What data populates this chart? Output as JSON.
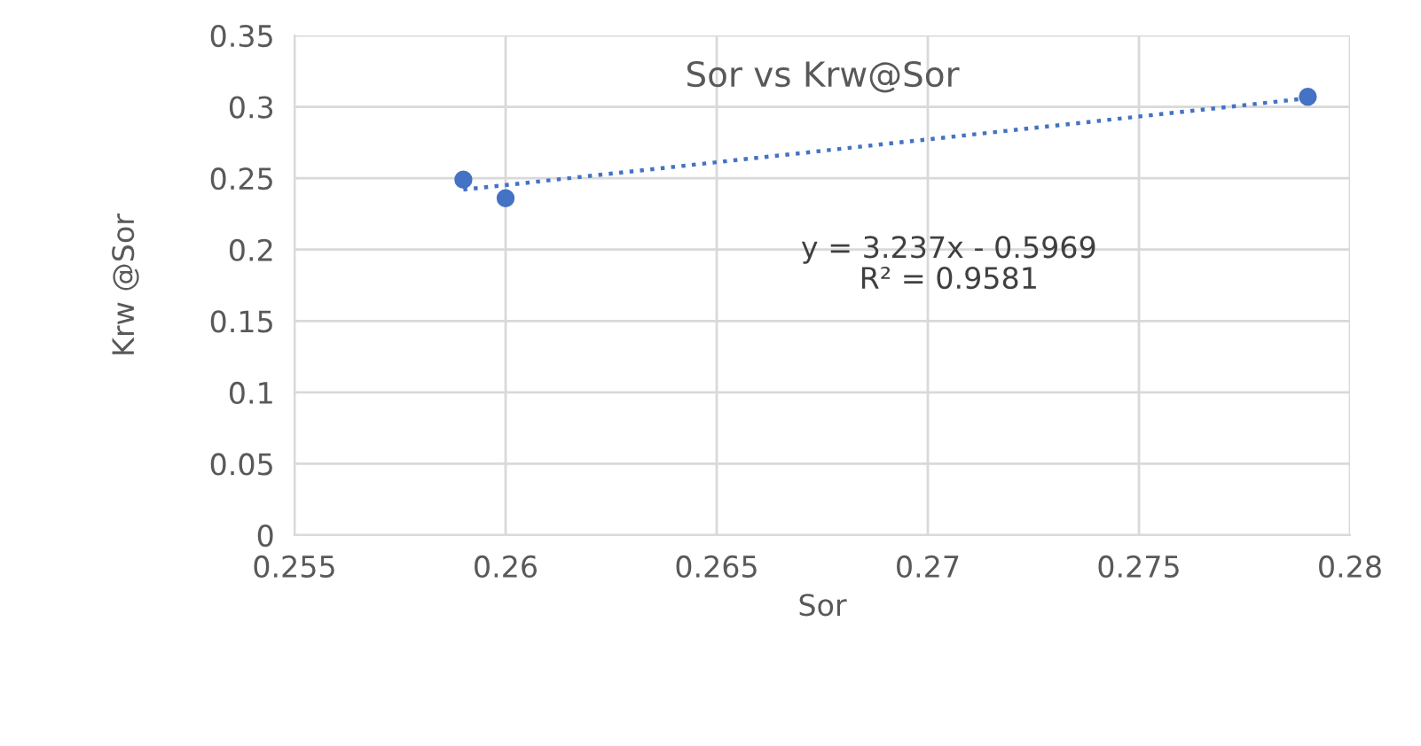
{
  "chart_data": {
    "type": "scatter",
    "title": "Sor vs Krw@Sor",
    "xlabel": "Sor",
    "ylabel": "Krw @Sor",
    "series": [
      {
        "color": "#4472c4",
        "x": [
          0.259,
          0.26,
          0.279
        ],
        "values": [
          0.249,
          0.236,
          0.307
        ],
        "marker": "circle"
      },
      {
        "type": "line",
        "color": "#4472c4",
        "x": [
          0.259,
          0.279
        ],
        "values": [
          0.242,
          0.306
        ],
        "line_style": "dotted",
        "marker": "none"
      }
    ],
    "annotations": [
      "y = 3.237x - 0.5969\nR² = 0.9581"
    ],
    "xlim": [
      0.255,
      0.28
    ],
    "xticks": [
      0.255,
      0.26,
      0.265,
      0.27,
      0.275,
      0.28
    ],
    "ylim": [
      0,
      0.35
    ],
    "yticks": [
      0,
      0.05,
      0.1,
      0.15,
      0.2,
      0.25,
      0.3,
      0.35
    ],
    "grid": true,
    "legend": false
  }
}
